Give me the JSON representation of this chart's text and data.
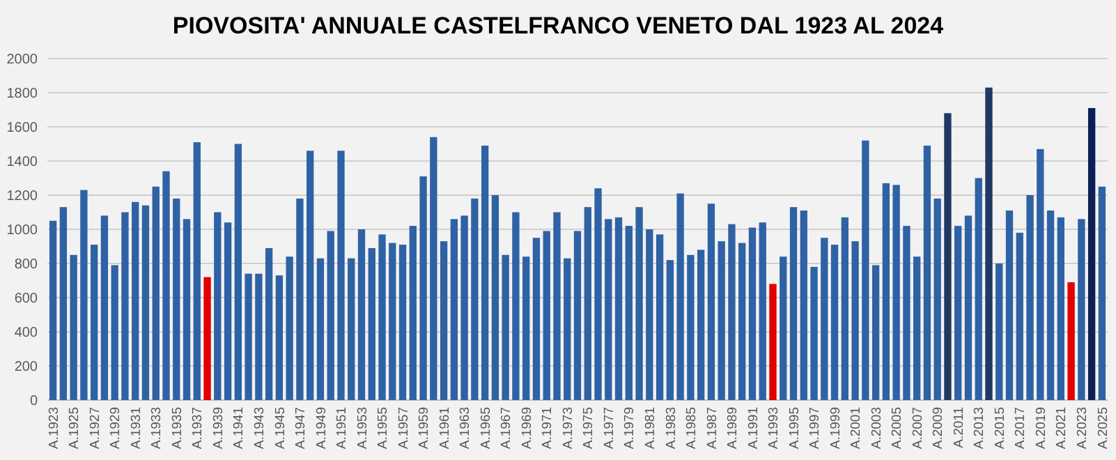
{
  "chart_data": {
    "type": "bar",
    "title": "PIOVOSITA' ANNUALE CASTELFRANCO VENETO DAL 1923 AL 2024",
    "categories": [
      "A.1923",
      null,
      "A.1925",
      null,
      "A.1927",
      null,
      "A.1929",
      null,
      "A.1931",
      null,
      "A.1933",
      null,
      "A.1935",
      null,
      "A.1937",
      null,
      "A.1939",
      null,
      "A.1941",
      null,
      "A.1943",
      null,
      "A.1945",
      null,
      "A.1947",
      null,
      "A.1949",
      null,
      "A.1951",
      null,
      "A.1953",
      null,
      "A.1955",
      null,
      "A.1957",
      null,
      "A.1959",
      null,
      "A.1961",
      null,
      "A.1963",
      null,
      "A.1965",
      null,
      "A.1967",
      null,
      "A.1969",
      null,
      "A.1971",
      null,
      "A.1973",
      null,
      "A.1975",
      null,
      "A.1977",
      null,
      "A.1979",
      null,
      "A.1981",
      null,
      "A.1983",
      null,
      "A.1985",
      null,
      "A.1987",
      null,
      "A.1989",
      null,
      "A.1991",
      null,
      "A.1993",
      null,
      "A.1995",
      null,
      "A.1997",
      null,
      "A.1999",
      null,
      "A.2001",
      null,
      "A.2003",
      null,
      "A.2005",
      null,
      "A.2007",
      null,
      "A.2009",
      null,
      "A.2011",
      null,
      "A.2013",
      null,
      "A.2015",
      null,
      "A.2017",
      null,
      "A.2019",
      null,
      "A.2021",
      null,
      "A.2023",
      null,
      "A.2025"
    ],
    "values": [
      1050,
      1130,
      850,
      1230,
      910,
      1080,
      790,
      1100,
      1160,
      1140,
      1250,
      1340,
      1180,
      1060,
      1510,
      720,
      1100,
      1040,
      1500,
      740,
      740,
      890,
      730,
      840,
      1180,
      1460,
      830,
      990,
      1460,
      830,
      1000,
      890,
      970,
      920,
      910,
      1020,
      1310,
      1540,
      930,
      1060,
      1080,
      1180,
      1490,
      1200,
      850,
      1100,
      840,
      950,
      990,
      1100,
      830,
      990,
      1130,
      1240,
      1060,
      1070,
      1020,
      1130,
      1000,
      970,
      820,
      1210,
      850,
      880,
      1150,
      930,
      1030,
      920,
      1010,
      1040,
      680,
      840,
      1130,
      1110,
      780,
      950,
      910,
      1070,
      930,
      1520,
      790,
      1270,
      1260,
      1020,
      840,
      1490,
      1180,
      1680,
      1020,
      1080,
      1300,
      1830,
      800,
      1110,
      980,
      1200,
      1470,
      1110,
      1070,
      690,
      1060,
      1710,
      1250
    ],
    "colors": [
      "#2f62a5",
      "#2f62a5",
      "#2f62a5",
      "#2f62a5",
      "#2f62a5",
      "#2f62a5",
      "#2f62a5",
      "#2f62a5",
      "#2f62a5",
      "#2f62a5",
      "#2f62a5",
      "#2f62a5",
      "#2f62a5",
      "#2f62a5",
      "#2f62a5",
      "#e00000",
      "#2f62a5",
      "#2f62a5",
      "#2f62a5",
      "#2f62a5",
      "#2f62a5",
      "#2f62a5",
      "#2f62a5",
      "#2f62a5",
      "#2f62a5",
      "#2f62a5",
      "#2f62a5",
      "#2f62a5",
      "#2f62a5",
      "#2f62a5",
      "#2f62a5",
      "#2f62a5",
      "#2f62a5",
      "#2f62a5",
      "#2f62a5",
      "#2f62a5",
      "#2f62a5",
      "#2f62a5",
      "#2f62a5",
      "#2f62a5",
      "#2f62a5",
      "#2f62a5",
      "#2f62a5",
      "#2f62a5",
      "#2f62a5",
      "#2f62a5",
      "#2f62a5",
      "#2f62a5",
      "#2f62a5",
      "#2f62a5",
      "#2f62a5",
      "#2f62a5",
      "#2f62a5",
      "#2f62a5",
      "#2f62a5",
      "#2f62a5",
      "#2f62a5",
      "#2f62a5",
      "#2f62a5",
      "#2f62a5",
      "#2f62a5",
      "#2f62a5",
      "#2f62a5",
      "#2f62a5",
      "#2f62a5",
      "#2f62a5",
      "#2f62a5",
      "#2f62a5",
      "#2f62a5",
      "#2f62a5",
      "#e00000",
      "#2f62a5",
      "#2f62a5",
      "#2f62a5",
      "#2f62a5",
      "#2f62a5",
      "#2f62a5",
      "#2f62a5",
      "#2f62a5",
      "#2f62a5",
      "#2f62a5",
      "#2f62a5",
      "#2f62a5",
      "#2f62a5",
      "#2f62a5",
      "#2f62a5",
      "#2f62a5",
      "#1f3864",
      "#2f62a5",
      "#2f62a5",
      "#2f62a5",
      "#1f3864",
      "#2f62a5",
      "#2f62a5",
      "#2f62a5",
      "#2f62a5",
      "#2f62a5",
      "#2f62a5",
      "#2f62a5",
      "#e00000",
      "#2f62a5",
      "#0a1f55",
      "#2f62a5"
    ],
    "ylim": [
      0,
      2000
    ],
    "yticks": [
      0,
      200,
      400,
      600,
      800,
      1000,
      1200,
      1400,
      1600,
      1800,
      2000
    ],
    "grid": "y"
  }
}
